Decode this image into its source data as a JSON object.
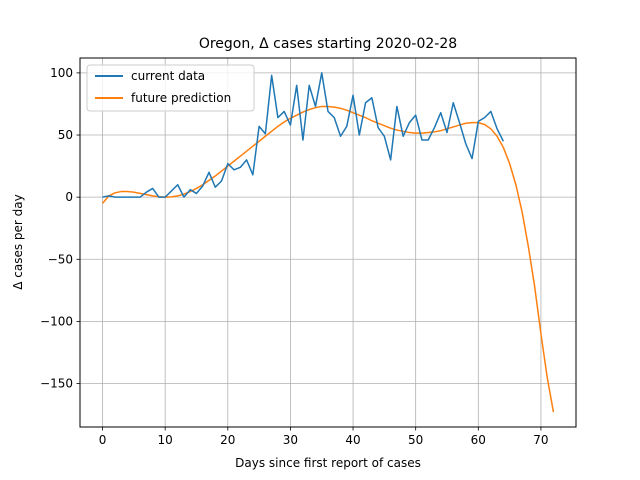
{
  "chart_data": {
    "type": "line",
    "title": "Oregon, Δ cases starting 2020-02-28",
    "xlabel": "Days since first report of cases",
    "ylabel": "Δ cases per day",
    "xlim": [
      -3.6,
      75.6
    ],
    "ylim": [
      -185,
      112
    ],
    "xticks": [
      0,
      10,
      20,
      30,
      40,
      50,
      60,
      70
    ],
    "yticks": [
      -150,
      -100,
      -50,
      0,
      50,
      100
    ],
    "xtick_labels": [
      "0",
      "10",
      "20",
      "30",
      "40",
      "50",
      "60",
      "70"
    ],
    "ytick_labels": [
      "−150",
      "−100",
      "−50",
      "0",
      "50",
      "100"
    ],
    "grid": true,
    "legend_position": "top-left",
    "series": [
      {
        "name": "current data",
        "color": "#1f77b4",
        "x": [
          0,
          1,
          2,
          3,
          4,
          5,
          6,
          7,
          8,
          9,
          10,
          11,
          12,
          13,
          14,
          15,
          16,
          17,
          18,
          19,
          20,
          21,
          22,
          23,
          24,
          25,
          26,
          27,
          28,
          29,
          30,
          31,
          32,
          33,
          34,
          35,
          36,
          37,
          38,
          39,
          40,
          41,
          42,
          43,
          44,
          45,
          46,
          47,
          48,
          49,
          50,
          51,
          52,
          53,
          54,
          55,
          56,
          57,
          58,
          59,
          60,
          61,
          62,
          63,
          64
        ],
        "y": [
          0,
          1,
          0,
          0,
          0,
          0,
          0,
          4,
          7,
          0,
          0,
          5,
          10,
          0,
          6,
          3,
          9,
          20,
          8,
          13,
          27,
          22,
          24,
          30,
          18,
          57,
          51,
          98,
          64,
          69,
          58,
          90,
          46,
          90,
          73,
          100,
          69,
          64,
          49,
          57,
          82,
          50,
          76,
          80,
          56,
          49,
          30,
          73,
          49,
          60,
          66,
          46,
          46,
          56,
          68,
          52,
          76,
          60,
          43,
          31,
          61,
          64,
          69,
          55,
          45
        ]
      },
      {
        "name": "future prediction",
        "color": "#ff7f0e",
        "x": [
          0,
          1,
          2,
          3,
          4,
          5,
          6,
          7,
          8,
          9,
          10,
          11,
          12,
          13,
          14,
          15,
          16,
          17,
          18,
          19,
          20,
          21,
          22,
          23,
          24,
          25,
          26,
          27,
          28,
          29,
          30,
          31,
          32,
          33,
          34,
          35,
          36,
          37,
          38,
          39,
          40,
          41,
          42,
          43,
          44,
          45,
          46,
          47,
          48,
          49,
          50,
          51,
          52,
          53,
          54,
          55,
          56,
          57,
          58,
          59,
          60,
          61,
          62,
          63,
          64,
          65,
          66,
          67,
          68,
          69,
          70,
          71,
          72
        ],
        "y": [
          -5,
          1,
          3.5,
          4.5,
          4.5,
          4,
          3,
          2,
          1,
          0.3,
          0,
          0.2,
          1,
          2.5,
          4.5,
          7,
          10,
          13.5,
          17,
          21,
          25,
          29,
          33,
          37,
          41,
          45,
          49,
          53,
          57,
          60.5,
          63.5,
          66,
          68.5,
          70.5,
          72,
          73,
          73,
          72.5,
          71.5,
          70,
          68,
          66,
          64,
          61.5,
          59.5,
          57.5,
          55.5,
          54,
          53,
          52,
          51.5,
          51.5,
          52,
          52.5,
          53.5,
          55,
          56.5,
          58,
          59.5,
          60,
          60,
          58.5,
          55,
          49,
          40,
          27,
          10,
          -12,
          -40,
          -72,
          -110,
          -145,
          -173
        ]
      }
    ]
  }
}
